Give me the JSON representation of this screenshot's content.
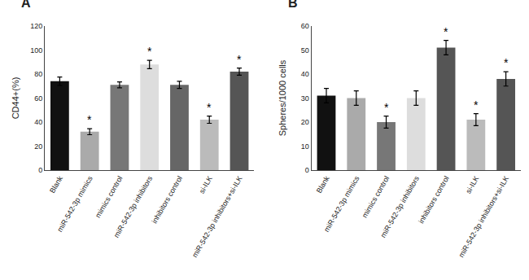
{
  "chart_data": [
    {
      "type": "bar",
      "title": "A",
      "ylabel": "CD44+(%)",
      "categories": [
        "Blank",
        "miR-542-3p mimics",
        "mimics control",
        "miR-542-3p inhibitors",
        "inhibitors control",
        "si-ILK",
        "miR-542-3p inhibitors+si-ILK"
      ],
      "values": [
        74,
        32,
        71,
        88,
        71,
        42,
        82
      ],
      "errors": [
        3.5,
        2.5,
        2.5,
        3.5,
        3.0,
        3.0,
        3.0
      ],
      "colors": [
        "#111111",
        "#aaaaaa",
        "#777777",
        "#dddddd",
        "#666666",
        "#bbbbbb",
        "#555555"
      ],
      "annotations": [
        {
          "category": "miR-542-3p mimics",
          "text": "*"
        },
        {
          "category": "miR-542-3p inhibitors",
          "text": "*"
        },
        {
          "category": "si-ILK",
          "text": "*"
        },
        {
          "category": "miR-542-3p inhibitors+si-ILK",
          "text": "*"
        }
      ],
      "ylim": [
        0,
        120
      ],
      "yticks": [
        0,
        20,
        40,
        60,
        80,
        100,
        120
      ],
      "grid": false
    },
    {
      "type": "bar",
      "title": "B",
      "ylabel": "Spheres/1000 cells",
      "categories": [
        "Blank",
        "miR-542-3p mimics",
        "mimics control",
        "miR-542-3p inhibitors",
        "inhibitors control",
        "si-ILK",
        "miR-542-3p inhibitors+si-ILK"
      ],
      "values": [
        31,
        30,
        20,
        30,
        51,
        21,
        38
      ],
      "errors": [
        3.0,
        3.0,
        2.5,
        3.0,
        3.0,
        2.5,
        3.0
      ],
      "colors": [
        "#111111",
        "#aaaaaa",
        "#777777",
        "#dddddd",
        "#555555",
        "#bbbbbb",
        "#555555"
      ],
      "annotations": [
        {
          "category": "mimics control",
          "text": "*"
        },
        {
          "category": "inhibitors control",
          "text": "*"
        },
        {
          "category": "si-ILK",
          "text": "*"
        },
        {
          "category": "miR-542-3p inhibitors+si-ILK",
          "text": "*"
        }
      ],
      "ylim": [
        0,
        60
      ],
      "yticks": [
        0,
        10,
        20,
        30,
        40,
        50,
        60
      ],
      "grid": false
    }
  ]
}
